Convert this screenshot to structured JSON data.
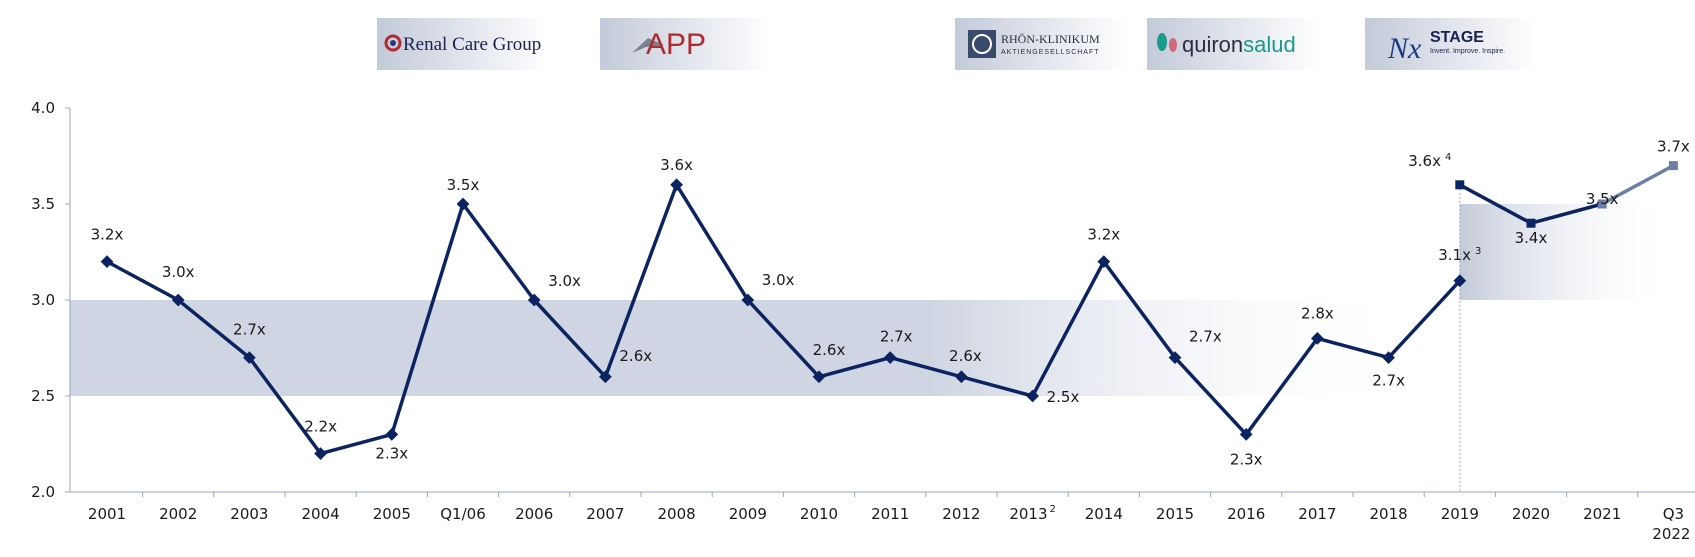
{
  "logos": [
    {
      "name": "renal-care-group-logo",
      "text": "Renal Care Group"
    },
    {
      "name": "app-logo",
      "text": "APP"
    },
    {
      "name": "rhon-klinikum-logo",
      "text": "RHÖN-KLINIKUM",
      "subtext": "AKTIENGESELLSCHAFT"
    },
    {
      "name": "quironsalud-logo",
      "text_a": "quiron",
      "text_b": "salud"
    },
    {
      "name": "nxstage-logo",
      "text": "STAGE",
      "subtext": "Invent. Improve. Inspire."
    }
  ],
  "colors": {
    "line": "#0b2461",
    "line_2021": "#6b7fa8",
    "band": "#cfd5e2",
    "axis": "#9aa3b5",
    "q3_label": "#7a8fb5"
  },
  "chart_data": {
    "type": "line",
    "ylim": [
      2.0,
      4.0
    ],
    "yticks": [
      "2.0",
      "2.5",
      "3.0",
      "3.5",
      "4.0"
    ],
    "band_1": [
      2.5,
      3.0
    ],
    "band_2": [
      3.0,
      3.5
    ],
    "categories": [
      {
        "label": "2001",
        "sup": ""
      },
      {
        "label": "2002",
        "sup": ""
      },
      {
        "label": "2003",
        "sup": ""
      },
      {
        "label": "2004",
        "sup": ""
      },
      {
        "label": "2005",
        "sup": ""
      },
      {
        "label": "Q1/06",
        "sup": ""
      },
      {
        "label": "2006",
        "sup": ""
      },
      {
        "label": "2007",
        "sup": ""
      },
      {
        "label": "2008",
        "sup": ""
      },
      {
        "label": "2009",
        "sup": ""
      },
      {
        "label": "2010",
        "sup": ""
      },
      {
        "label": "2011",
        "sup": ""
      },
      {
        "label": "2012",
        "sup": ""
      },
      {
        "label": "2013",
        "sup": "2"
      },
      {
        "label": "2014",
        "sup": ""
      },
      {
        "label": "2015",
        "sup": ""
      },
      {
        "label": "2016",
        "sup": ""
      },
      {
        "label": "2017",
        "sup": ""
      },
      {
        "label": "2018",
        "sup": ""
      },
      {
        "label": "2019",
        "sup": ""
      },
      {
        "label": "2020",
        "sup": ""
      },
      {
        "label": "2021",
        "sup": ""
      },
      {
        "label": "Q3",
        "label2": "2022",
        "sup": ""
      }
    ],
    "series": [
      {
        "points": [
          {
            "x": "2001",
            "y": 3.2,
            "label": "3.2x"
          },
          {
            "x": "2002",
            "y": 3.0,
            "label": "3.0x"
          },
          {
            "x": "2003",
            "y": 2.7,
            "label": "2.7x"
          },
          {
            "x": "2004",
            "y": 2.2,
            "label": "2.2x"
          },
          {
            "x": "2005",
            "y": 2.3,
            "label": "2.3x"
          },
          {
            "x": "Q1/06",
            "y": 3.5,
            "label": "3.5x"
          },
          {
            "x": "2006",
            "y": 3.0,
            "label": "3.0x"
          },
          {
            "x": "2007",
            "y": 2.6,
            "label": "2.6x"
          },
          {
            "x": "2008",
            "y": 3.6,
            "label": "3.6x"
          },
          {
            "x": "2009",
            "y": 3.0,
            "label": "3.0x"
          },
          {
            "x": "2010",
            "y": 2.6,
            "label": "2.6x"
          },
          {
            "x": "2011",
            "y": 2.7,
            "label": "2.7x"
          },
          {
            "x": "2012",
            "y": 2.6,
            "label": "2.6x"
          },
          {
            "x": "2013",
            "y": 2.5,
            "label": "2.5x"
          },
          {
            "x": "2014",
            "y": 3.2,
            "label": "3.2x"
          },
          {
            "x": "2015",
            "y": 2.7,
            "label": "2.7x"
          },
          {
            "x": "2016",
            "y": 2.3,
            "label": "2.3x"
          },
          {
            "x": "2017",
            "y": 2.8,
            "label": "2.8x"
          },
          {
            "x": "2018",
            "y": 2.7,
            "label": "2.7x"
          },
          {
            "x": "2019",
            "y": 3.1,
            "label": "3.1x",
            "sup": "3"
          }
        ]
      },
      {
        "points": [
          {
            "x": "2019",
            "y": 3.6,
            "label": "3.6x",
            "sup": "4"
          },
          {
            "x": "2020",
            "y": 3.4,
            "label": "3.4x"
          },
          {
            "x": "2021",
            "y": 3.5,
            "label": "3.5x"
          }
        ]
      },
      {
        "points": [
          {
            "x": "2021",
            "y": 3.5,
            "label": ""
          },
          {
            "x": "Q3 2022",
            "y": 3.7,
            "label": "3.7x"
          }
        ]
      }
    ]
  }
}
